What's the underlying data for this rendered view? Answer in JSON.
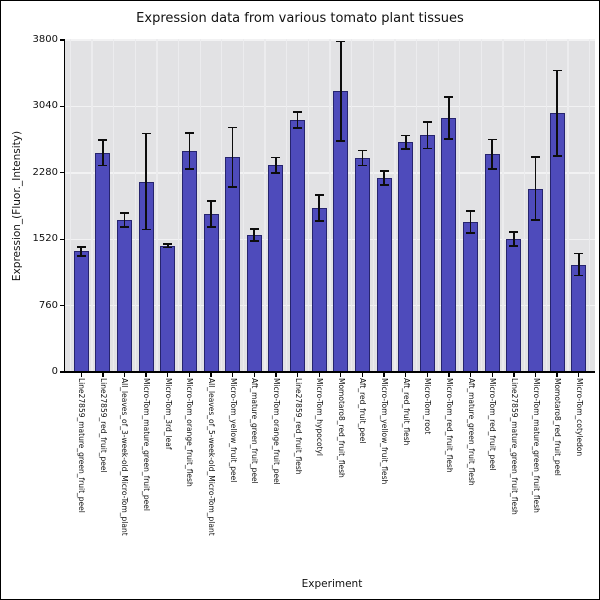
{
  "figure": {
    "background": "#ffffff",
    "border_color": "#000000"
  },
  "chart_data": {
    "type": "bar",
    "title": "Expression data from various tomato plant tissues",
    "xlabel": "Experiment",
    "ylabel": "Expression_(Fluor._Intensity)",
    "yticks": [
      0,
      760,
      1520,
      2280,
      3040,
      3800
    ],
    "ylim": [
      0,
      3812
    ],
    "grid": true,
    "legend": false,
    "plot_bg": "#e2e2e4",
    "grid_color": "#f2f2f3",
    "bar_color": "#4e4bbb",
    "bar_edge_color": "#26246e",
    "error_bar_color": "#0d0d0d",
    "categories": [
      "Line27859_mature_green_fruit_peel",
      "Line27859_red_fruit_peel",
      "All_leaves_of_3-week-old_Micro-Tom_plant",
      "Micro-Tom_mature_green_fruit_peel",
      "Micro-Tom_3rd_leaf",
      "Micro-Tom_orange_fruit_flesh",
      "All_leaves_of_5-week-old_Micro-Tom_plant",
      "Micro-Tom_yellow_fruit_peel",
      "Aft_mature_green_fruit_peel",
      "Micro-Tom_orange_fruit_peel",
      "Line27859_red_fruit_flesh",
      "Micro-Tom_hypocotyl",
      "Momotaro8_red_fruit_flesh",
      "Aft_red_fruit_peel",
      "Micro-Tom_yellow_fruit_flesh",
      "Aft_red_fruit_flesh",
      "Micro-Tom_root",
      "Micro-Tom_red_fruit_flesh",
      "Aft_mature_green_fruit_flesh",
      "Micro-Tom_red_fruit_peel",
      "Line27859_mature_green_fruit_flesh",
      "Micro-Tom_mature_green_fruit_flesh",
      "Momotaro8_red_fruit_peel",
      "Micro-Tom_cotyledon"
    ],
    "values": [
      1380,
      2510,
      1740,
      2180,
      1445,
      2530,
      1810,
      2460,
      1570,
      2365,
      2885,
      1880,
      3215,
      2450,
      2220,
      2630,
      2710,
      2910,
      1715,
      2490,
      1525,
      2100,
      2960,
      1230
    ],
    "errors": [
      50,
      145,
      80,
      550,
      20,
      205,
      150,
      340,
      70,
      90,
      95,
      150,
      570,
      85,
      82,
      76,
      150,
      240,
      125,
      170,
      80,
      360,
      490,
      125
    ]
  }
}
